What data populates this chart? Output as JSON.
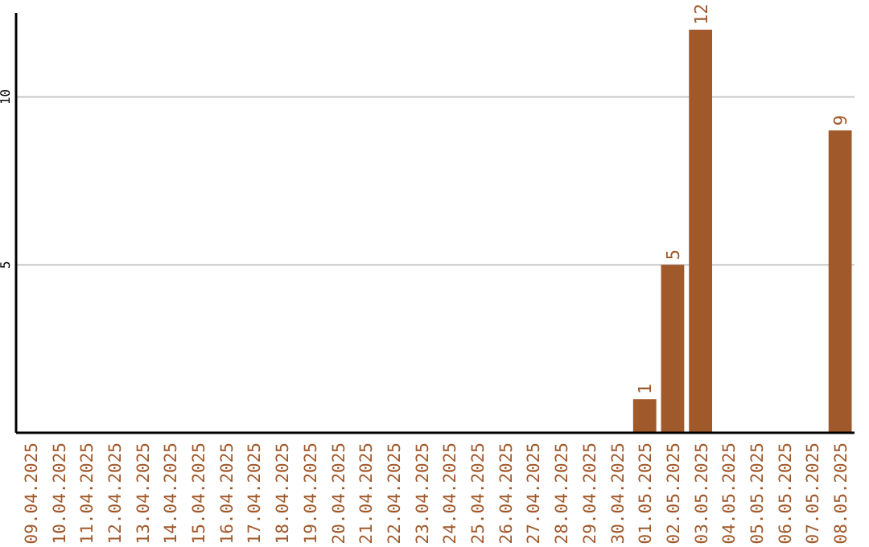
{
  "chart_data": {
    "type": "bar",
    "categories": [
      "09.04.2025",
      "10.04.2025",
      "11.04.2025",
      "12.04.2025",
      "13.04.2025",
      "14.04.2025",
      "15.04.2025",
      "16.04.2025",
      "17.04.2025",
      "18.04.2025",
      "19.04.2025",
      "20.04.2025",
      "21.04.2025",
      "22.04.2025",
      "23.04.2025",
      "24.04.2025",
      "25.04.2025",
      "26.04.2025",
      "27.04.2025",
      "28.04.2025",
      "29.04.2025",
      "30.04.2025",
      "01.05.2025",
      "02.05.2025",
      "03.05.2025",
      "04.05.2025",
      "05.05.2025",
      "06.05.2025",
      "07.05.2025",
      "08.05.2025"
    ],
    "values": [
      0,
      0,
      0,
      0,
      0,
      0,
      0,
      0,
      0,
      0,
      0,
      0,
      0,
      0,
      0,
      0,
      0,
      0,
      0,
      0,
      0,
      0,
      1,
      5,
      12,
      0,
      0,
      0,
      0,
      9
    ],
    "value_labels": [
      null,
      null,
      null,
      null,
      null,
      null,
      null,
      null,
      null,
      null,
      null,
      null,
      null,
      null,
      null,
      null,
      null,
      null,
      null,
      null,
      null,
      null,
      "1",
      "5",
      "12",
      null,
      null,
      null,
      null,
      "9"
    ],
    "color": "#a0592b",
    "ylim": [
      0,
      12.5
    ],
    "yticks": [
      5,
      10
    ],
    "grid": "y"
  }
}
